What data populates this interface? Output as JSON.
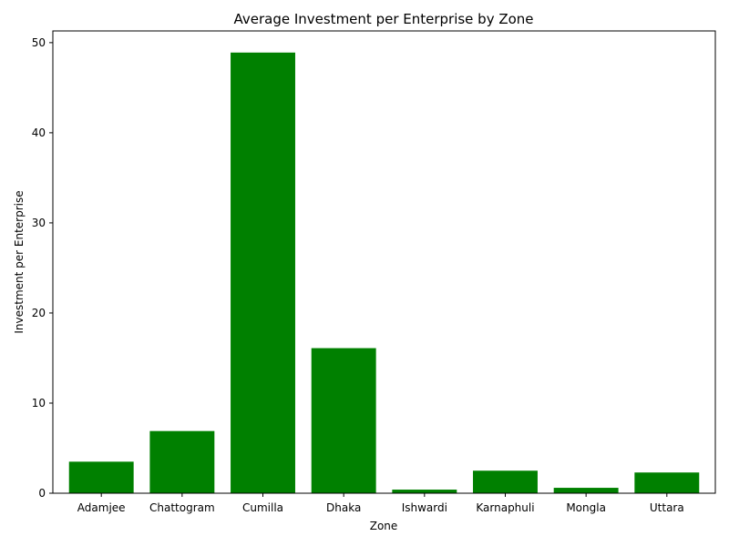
{
  "chart_data": {
    "type": "bar",
    "title": "Average Investment per Enterprise by Zone",
    "xlabel": "Zone",
    "ylabel": "Investment per Enterprise",
    "categories": [
      "Adamjee",
      "Chattogram",
      "Cumilla",
      "Dhaka",
      "Ishwardi",
      "Karnaphuli",
      "Mongla",
      "Uttara"
    ],
    "values": [
      3.5,
      6.9,
      48.9,
      16.1,
      0.4,
      2.5,
      0.6,
      2.3
    ],
    "ylim": [
      0,
      51.3
    ],
    "yticks": [
      0,
      10,
      20,
      30,
      40,
      50
    ],
    "bar_color": "#008000",
    "grid": false,
    "legend": "none"
  }
}
